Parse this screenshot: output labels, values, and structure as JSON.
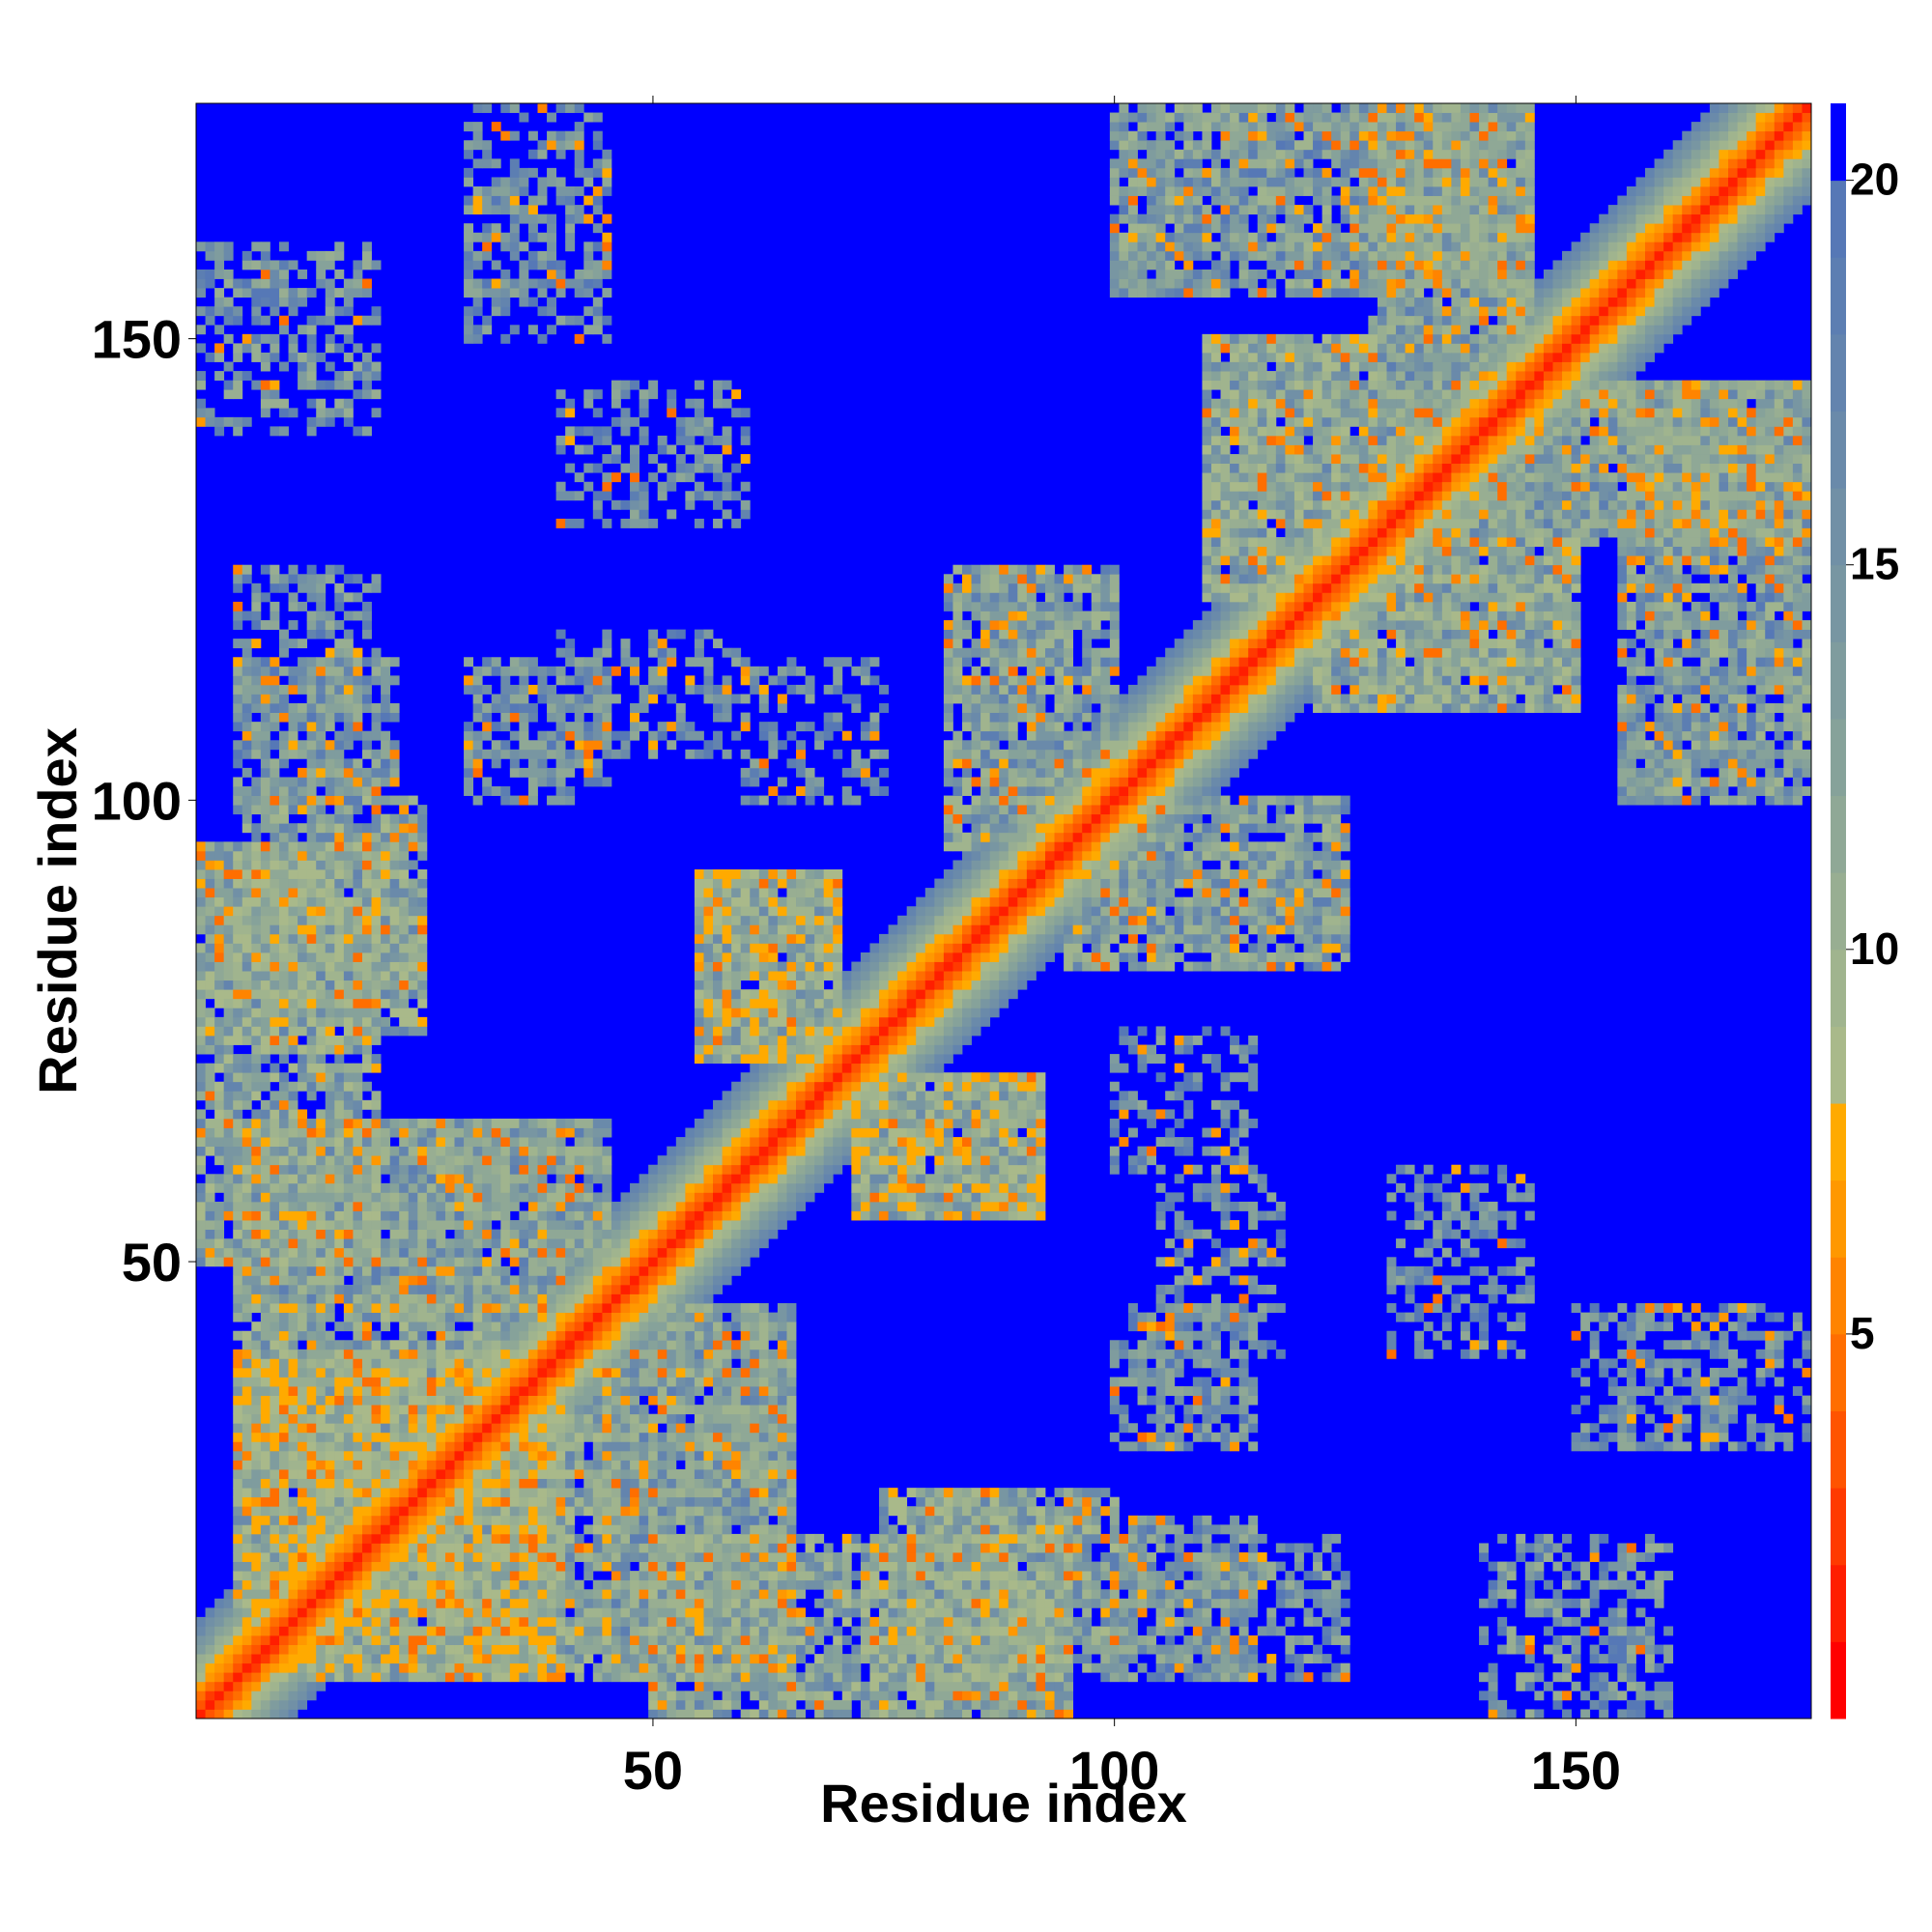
{
  "chart_data": {
    "type": "heatmap",
    "title": "",
    "xlabel": "Residue index",
    "ylabel": "Residue index",
    "xlim": [
      1,
      175
    ],
    "ylim": [
      1,
      175
    ],
    "x_ticks": [
      50,
      100,
      150
    ],
    "y_ticks": [
      50,
      100,
      150
    ],
    "colorbar": {
      "range": [
        0,
        21
      ],
      "ticks": [
        5,
        10,
        15,
        20
      ],
      "levels": [
        {
          "from": 0,
          "to": 1,
          "color": "#ff0000"
        },
        {
          "from": 1,
          "to": 2,
          "color": "#ff1e00"
        },
        {
          "from": 2,
          "to": 3,
          "color": "#ff3a00"
        },
        {
          "from": 3,
          "to": 4,
          "color": "#ff5400"
        },
        {
          "from": 4,
          "to": 5,
          "color": "#ff6e00"
        },
        {
          "from": 5,
          "to": 6,
          "color": "#ff8400"
        },
        {
          "from": 6,
          "to": 7,
          "color": "#ff9800"
        },
        {
          "from": 7,
          "to": 8,
          "color": "#ffaa00"
        },
        {
          "from": 8,
          "to": 9,
          "color": "#a9b98a"
        },
        {
          "from": 9,
          "to": 10,
          "color": "#a0b48e"
        },
        {
          "from": 10,
          "to": 11,
          "color": "#98ae92"
        },
        {
          "from": 11,
          "to": 12,
          "color": "#8fa896"
        },
        {
          "from": 12,
          "to": 13,
          "color": "#86a29a"
        },
        {
          "from": 13,
          "to": 14,
          "color": "#7f9c9e"
        },
        {
          "from": 14,
          "to": 15,
          "color": "#7896a2"
        },
        {
          "from": 15,
          "to": 16,
          "color": "#7190a6"
        },
        {
          "from": 16,
          "to": 17,
          "color": "#6a8aaa"
        },
        {
          "from": 17,
          "to": 18,
          "color": "#6384ae"
        },
        {
          "from": 18,
          "to": 19,
          "color": "#5c7eb2"
        },
        {
          "from": 19,
          "to": 20,
          "color": "#5678b6"
        },
        {
          "from": 20,
          "to": 21,
          "color": "#0000ff"
        }
      ]
    },
    "cutoff_distance": 20,
    "background_value": 21,
    "contact_segments": [
      {
        "i_range": [
          1,
          175
        ],
        "j_range": [
          1,
          175
        ],
        "type": "diagonal",
        "core": 1.2,
        "halfwidth": 10
      },
      {
        "i_range": [
          1,
          20
        ],
        "j_range": [
          50,
          95
        ],
        "density": 0.85,
        "mean": 13
      },
      {
        "i_range": [
          5,
          40
        ],
        "j_range": [
          5,
          40
        ],
        "density": 0.9,
        "mean": 12
      },
      {
        "i_range": [
          5,
          45
        ],
        "j_range": [
          45,
          65
        ],
        "density": 0.8,
        "mean": 14
      },
      {
        "i_range": [
          5,
          25
        ],
        "j_range": [
          78,
          100
        ],
        "density": 0.8,
        "mean": 13
      },
      {
        "i_range": [
          25,
          45
        ],
        "j_range": [
          5,
          40
        ],
        "density": 0.85,
        "mean": 13
      },
      {
        "i_range": [
          45,
          65
        ],
        "j_range": [
          5,
          45
        ],
        "density": 0.8,
        "mean": 14
      },
      {
        "i_range": [
          55,
          70
        ],
        "j_range": [
          72,
          92
        ],
        "density": 0.85,
        "mean": 12
      },
      {
        "i_range": [
          72,
          92
        ],
        "j_range": [
          55,
          70
        ],
        "density": 0.85,
        "mean": 12
      },
      {
        "i_range": [
          75,
          95
        ],
        "j_range": [
          1,
          25
        ],
        "density": 0.8,
        "mean": 13
      },
      {
        "i_range": [
          100,
          115
        ],
        "j_range": [
          5,
          22
        ],
        "density": 0.6,
        "mean": 15
      },
      {
        "i_range": [
          95,
          125
        ],
        "j_range": [
          82,
          100
        ],
        "density": 0.7,
        "mean": 14
      },
      {
        "i_range": [
          82,
          100
        ],
        "j_range": [
          95,
          125
        ],
        "density": 0.7,
        "mean": 14
      },
      {
        "i_range": [
          100,
          125
        ],
        "j_range": [
          5,
          20
        ],
        "density": 0.55,
        "mean": 15
      },
      {
        "i_range": [
          122,
          150
        ],
        "j_range": [
          110,
          128
        ],
        "density": 0.8,
        "mean": 13
      },
      {
        "i_range": [
          110,
          128
        ],
        "j_range": [
          122,
          150
        ],
        "density": 0.8,
        "mean": 13
      },
      {
        "i_range": [
          128,
          145
        ],
        "j_range": [
          130,
          175
        ],
        "density": 0.75,
        "mean": 14
      },
      {
        "i_range": [
          130,
          175
        ],
        "j_range": [
          128,
          145
        ],
        "density": 0.75,
        "mean": 14
      },
      {
        "i_range": [
          100,
          145
        ],
        "j_range": [
          155,
          175
        ],
        "density": 0.7,
        "mean": 14
      },
      {
        "i_range": [
          155,
          175
        ],
        "j_range": [
          100,
          145
        ],
        "density": 0.55,
        "mean": 15
      },
      {
        "i_range": [
          30,
          45
        ],
        "j_range": [
          100,
          115
        ],
        "density": 0.5,
        "mean": 16
      },
      {
        "i_range": [
          40,
          60
        ],
        "j_range": [
          130,
          145
        ],
        "density": 0.45,
        "mean": 16
      },
      {
        "i_range": [
          30,
          45
        ],
        "j_range": [
          150,
          170
        ],
        "density": 0.5,
        "mean": 16
      },
      {
        "i_range": [
          100,
          115
        ],
        "j_range": [
          30,
          45
        ],
        "density": 0.5,
        "mean": 16
      },
      {
        "i_range": [
          40,
          60
        ],
        "j_range": [
          105,
          118
        ],
        "density": 0.45,
        "mean": 16
      },
      {
        "i_range": [
          60,
          75
        ],
        "j_range": [
          100,
          115
        ],
        "density": 0.45,
        "mean": 16
      },
      {
        "i_range": [
          140,
          160
        ],
        "j_range": [
          1,
          20
        ],
        "density": 0.5,
        "mean": 15
      },
      {
        "i_range": [
          155,
          175
        ],
        "j_range": [
          30,
          45
        ],
        "density": 0.4,
        "mean": 16
      }
    ]
  }
}
